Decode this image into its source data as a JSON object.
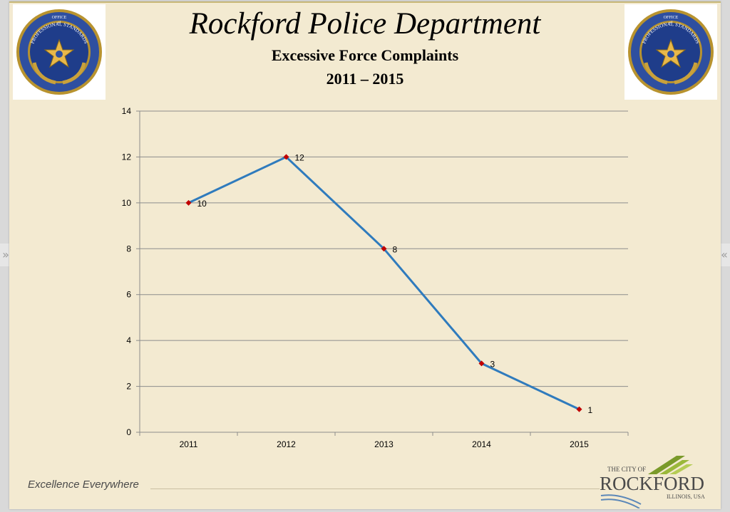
{
  "header": {
    "title": "Rockford Police Department",
    "subtitle": "Excessive Force Complaints",
    "years": "2011 – 2015"
  },
  "seal": {
    "text_top": "OFFICE",
    "text_of": "of",
    "text_arc": "PROFESSIONAL STANDARDS",
    "icon": "badge-star-icon"
  },
  "footer": {
    "tagline": "Excellence Everywhere",
    "city_line1": "THE CITY OF",
    "city_name": "ROCKFORD",
    "city_line3": "ILLINOIS, USA"
  },
  "nav": {
    "prev_icon": "double-chevron-right-icon",
    "next_icon": "double-chevron-left-icon",
    "prev_glyph": "»",
    "next_glyph": "«"
  },
  "colors": {
    "background": "#f3ead1",
    "line": "#2f7bbd",
    "marker": "#c00000",
    "grid": "#8c8c8c"
  },
  "chart_data": {
    "type": "line",
    "categories": [
      "2011",
      "2012",
      "2013",
      "2014",
      "2015"
    ],
    "values": [
      10,
      12,
      8,
      3,
      1
    ],
    "data_labels": [
      "10",
      "12",
      "8",
      "3",
      "1"
    ],
    "ylim": [
      0,
      14
    ],
    "yticks": [
      0,
      2,
      4,
      6,
      8,
      10,
      12,
      14
    ],
    "grid": true,
    "legend": "none",
    "title": "",
    "xlabel": "",
    "ylabel": ""
  }
}
